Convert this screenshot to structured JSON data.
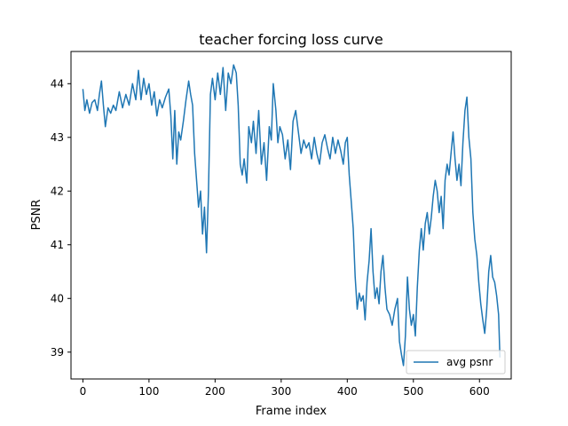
{
  "chart_data": {
    "type": "line",
    "title": "teacher forcing loss curve",
    "xlabel": "Frame index",
    "ylabel": "PSNR",
    "xlim": [
      -18,
      648
    ],
    "ylim": [
      38.5,
      44.6
    ],
    "xticks": [
      0,
      100,
      200,
      300,
      400,
      500,
      600
    ],
    "yticks": [
      39,
      40,
      41,
      42,
      43,
      44
    ],
    "grid": false,
    "legend": {
      "position": "lower-right"
    },
    "series": [
      {
        "name": "avg psnr",
        "color": "#1f77b4",
        "points": [
          [
            0,
            43.9
          ],
          [
            3,
            43.5
          ],
          [
            6,
            43.7
          ],
          [
            10,
            43.45
          ],
          [
            14,
            43.65
          ],
          [
            18,
            43.7
          ],
          [
            22,
            43.5
          ],
          [
            25,
            43.8
          ],
          [
            28,
            44.05
          ],
          [
            31,
            43.6
          ],
          [
            34,
            43.2
          ],
          [
            38,
            43.55
          ],
          [
            42,
            43.45
          ],
          [
            46,
            43.6
          ],
          [
            50,
            43.5
          ],
          [
            55,
            43.85
          ],
          [
            60,
            43.55
          ],
          [
            65,
            43.8
          ],
          [
            70,
            43.6
          ],
          [
            75,
            44.0
          ],
          [
            80,
            43.7
          ],
          [
            84,
            44.25
          ],
          [
            88,
            43.7
          ],
          [
            92,
            44.1
          ],
          [
            96,
            43.8
          ],
          [
            100,
            44.0
          ],
          [
            104,
            43.6
          ],
          [
            108,
            43.85
          ],
          [
            112,
            43.4
          ],
          [
            116,
            43.7
          ],
          [
            120,
            43.55
          ],
          [
            125,
            43.75
          ],
          [
            130,
            43.9
          ],
          [
            133,
            43.4
          ],
          [
            136,
            42.6
          ],
          [
            139,
            43.5
          ],
          [
            142,
            42.5
          ],
          [
            145,
            43.1
          ],
          [
            148,
            42.95
          ],
          [
            152,
            43.3
          ],
          [
            156,
            43.7
          ],
          [
            160,
            44.05
          ],
          [
            163,
            43.8
          ],
          [
            166,
            43.6
          ],
          [
            169,
            42.7
          ],
          [
            172,
            42.2
          ],
          [
            175,
            41.7
          ],
          [
            178,
            42.0
          ],
          [
            181,
            41.2
          ],
          [
            184,
            41.7
          ],
          [
            187,
            40.85
          ],
          [
            190,
            42.0
          ],
          [
            193,
            43.8
          ],
          [
            196,
            44.1
          ],
          [
            200,
            43.7
          ],
          [
            204,
            44.2
          ],
          [
            208,
            43.8
          ],
          [
            212,
            44.3
          ],
          [
            216,
            43.5
          ],
          [
            220,
            44.2
          ],
          [
            224,
            44.0
          ],
          [
            228,
            44.35
          ],
          [
            232,
            44.2
          ],
          [
            235,
            43.6
          ],
          [
            238,
            42.5
          ],
          [
            241,
            42.3
          ],
          [
            244,
            42.6
          ],
          [
            248,
            42.15
          ],
          [
            251,
            43.2
          ],
          [
            255,
            42.9
          ],
          [
            258,
            43.3
          ],
          [
            262,
            42.7
          ],
          [
            266,
            43.5
          ],
          [
            270,
            42.5
          ],
          [
            274,
            42.9
          ],
          [
            278,
            42.2
          ],
          [
            282,
            43.2
          ],
          [
            285,
            42.95
          ],
          [
            288,
            44.0
          ],
          [
            292,
            43.5
          ],
          [
            295,
            42.9
          ],
          [
            298,
            43.2
          ],
          [
            302,
            43.05
          ],
          [
            306,
            42.6
          ],
          [
            310,
            42.95
          ],
          [
            314,
            42.4
          ],
          [
            318,
            43.3
          ],
          [
            322,
            43.5
          ],
          [
            326,
            43.1
          ],
          [
            330,
            42.7
          ],
          [
            334,
            42.95
          ],
          [
            338,
            42.8
          ],
          [
            342,
            42.9
          ],
          [
            346,
            42.6
          ],
          [
            350,
            43.0
          ],
          [
            354,
            42.7
          ],
          [
            358,
            42.5
          ],
          [
            362,
            42.9
          ],
          [
            366,
            43.05
          ],
          [
            370,
            42.8
          ],
          [
            374,
            42.6
          ],
          [
            378,
            43.0
          ],
          [
            382,
            42.7
          ],
          [
            386,
            42.95
          ],
          [
            390,
            42.75
          ],
          [
            394,
            42.5
          ],
          [
            397,
            42.9
          ],
          [
            400,
            43.0
          ],
          [
            403,
            42.3
          ],
          [
            406,
            41.8
          ],
          [
            409,
            41.3
          ],
          [
            412,
            40.4
          ],
          [
            415,
            39.8
          ],
          [
            418,
            40.1
          ],
          [
            421,
            39.95
          ],
          [
            424,
            40.05
          ],
          [
            427,
            39.6
          ],
          [
            430,
            40.3
          ],
          [
            433,
            40.7
          ],
          [
            436,
            41.3
          ],
          [
            439,
            40.5
          ],
          [
            442,
            40.0
          ],
          [
            445,
            40.2
          ],
          [
            448,
            39.9
          ],
          [
            451,
            40.5
          ],
          [
            454,
            40.8
          ],
          [
            457,
            40.2
          ],
          [
            460,
            39.8
          ],
          [
            464,
            39.7
          ],
          [
            468,
            39.5
          ],
          [
            472,
            39.8
          ],
          [
            476,
            40.0
          ],
          [
            479,
            39.2
          ],
          [
            482,
            38.95
          ],
          [
            485,
            38.75
          ],
          [
            488,
            39.3
          ],
          [
            491,
            40.4
          ],
          [
            494,
            39.8
          ],
          [
            497,
            39.5
          ],
          [
            500,
            39.7
          ],
          [
            503,
            39.3
          ],
          [
            506,
            40.2
          ],
          [
            509,
            40.9
          ],
          [
            512,
            41.3
          ],
          [
            515,
            40.9
          ],
          [
            518,
            41.4
          ],
          [
            521,
            41.6
          ],
          [
            524,
            41.2
          ],
          [
            527,
            41.5
          ],
          [
            530,
            41.9
          ],
          [
            533,
            42.2
          ],
          [
            536,
            42.0
          ],
          [
            539,
            41.6
          ],
          [
            542,
            41.9
          ],
          [
            545,
            41.3
          ],
          [
            548,
            42.2
          ],
          [
            551,
            42.5
          ],
          [
            554,
            42.3
          ],
          [
            557,
            42.7
          ],
          [
            560,
            43.1
          ],
          [
            563,
            42.6
          ],
          [
            566,
            42.2
          ],
          [
            569,
            42.5
          ],
          [
            572,
            42.1
          ],
          [
            575,
            42.9
          ],
          [
            578,
            43.5
          ],
          [
            581,
            43.75
          ],
          [
            584,
            43.0
          ],
          [
            587,
            42.6
          ],
          [
            590,
            41.6
          ],
          [
            593,
            41.1
          ],
          [
            596,
            40.8
          ],
          [
            599,
            40.3
          ],
          [
            602,
            39.9
          ],
          [
            605,
            39.6
          ],
          [
            608,
            39.35
          ],
          [
            611,
            39.8
          ],
          [
            614,
            40.5
          ],
          [
            617,
            40.8
          ],
          [
            620,
            40.4
          ],
          [
            623,
            40.3
          ],
          [
            626,
            40.05
          ],
          [
            629,
            39.7
          ],
          [
            631,
            38.9
          ]
        ]
      }
    ]
  }
}
